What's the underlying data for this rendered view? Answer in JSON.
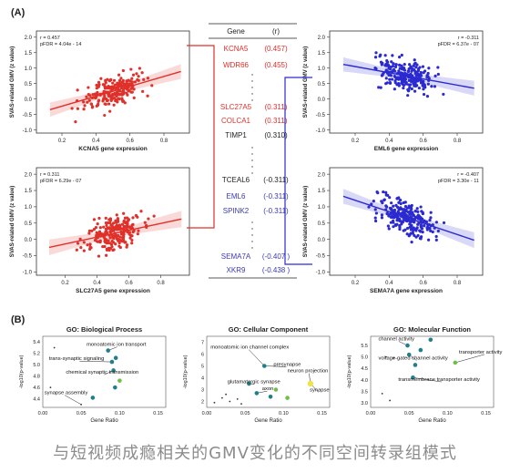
{
  "panels": {
    "a_label": "(A)",
    "b_label": "(B)"
  },
  "gene_table": {
    "header": {
      "gene": "Gene",
      "r": "(r)"
    },
    "rows": [
      {
        "gene": "KCNA5",
        "r": "(0.457)",
        "color": "#e0302a"
      },
      {
        "gene": "WDR66",
        "r": "(0.455)",
        "color": "#e0302a"
      },
      {
        "gene": "SLC27A5",
        "r": "(0.311)",
        "color": "#e0302a"
      },
      {
        "gene": "COLCA1",
        "r": "(0.311)",
        "color": "#e0302a"
      },
      {
        "gene": "TIMP1",
        "r": "(0.310)",
        "color": "#222222"
      },
      {
        "gene": "TCEAL6",
        "r": "(-0.311)",
        "color": "#222222"
      },
      {
        "gene": "EML6",
        "r": "(-0.311)",
        "color": "#3a3ab0"
      },
      {
        "gene": "SPINK2",
        "r": "(-0.311)",
        "color": "#3a3ab0"
      },
      {
        "gene": "SEMA7A",
        "r": "(-0.407 )",
        "color": "#3a3ab0"
      },
      {
        "gene": "XKR9",
        "r": "(-0.438 )",
        "color": "#3a3ab0"
      }
    ]
  },
  "colors": {
    "positive": "#e0302a",
    "negative": "#2a2ad0",
    "go_teal": "#1f7f8a",
    "go_green": "#6cc04a",
    "go_yellow": "#f2e24a"
  },
  "chart_data": [
    {
      "type": "scatter",
      "id": "kcna5",
      "color": "#e0302a",
      "xlabel": "KCNA5 gene expression",
      "ylabel": "SVAS-related GMV (z value)",
      "stats": [
        "r = 0.457",
        "pFDR = 4.04e - 14"
      ],
      "xticks": [
        "0.2",
        "0.4",
        "0.6",
        "0.8"
      ],
      "yticks": [
        "2.0",
        "1.5",
        "1.0",
        "0.5",
        "0.0",
        "-0.5",
        "-1.0"
      ],
      "xlim": [
        0.05,
        0.95
      ],
      "ylim": [
        -1.1,
        2.2
      ],
      "fit": {
        "slope": 1.6,
        "intercept": -0.55,
        "n": 230,
        "seed": 11
      }
    },
    {
      "type": "scatter",
      "id": "eml6",
      "color": "#2a2ad0",
      "xlabel": "EML6 gene expression",
      "ylabel": "SVAS-related GMV (z value)",
      "stats": [
        "r = -0.311",
        "pFDR = 6.37e - 07"
      ],
      "xticks": [
        "0.2",
        "0.4",
        "0.6",
        "0.8"
      ],
      "yticks": [
        "2.0",
        "1.5",
        "1.0",
        "0.5",
        "0.0",
        "-0.5",
        "-1.0"
      ],
      "xlim": [
        0.05,
        0.95
      ],
      "ylim": [
        -1.1,
        2.2
      ],
      "fit": {
        "slope": -1.0,
        "intercept": 1.25,
        "n": 230,
        "seed": 23
      }
    },
    {
      "type": "scatter",
      "id": "slc27a5",
      "color": "#e0302a",
      "xlabel": "SLC27A5 gene expression",
      "ylabel": "SVAS-related GMV (z value)",
      "stats": [
        "r = 0.311",
        "pFDR = 6.29e - 07"
      ],
      "xticks": [
        "0.2",
        "0.4",
        "0.6",
        "0.8"
      ],
      "yticks": [
        "2.0",
        "1.5",
        "1.0",
        "0.5",
        "0.0",
        "-0.5",
        "-1.0"
      ],
      "xlim": [
        0.02,
        0.98
      ],
      "ylim": [
        -1.1,
        2.2
      ],
      "fit": {
        "slope": 1.05,
        "intercept": -0.35,
        "n": 230,
        "seed": 37
      }
    },
    {
      "type": "scatter",
      "id": "sema7a",
      "color": "#2a2ad0",
      "xlabel": "SEMA7A gene expression",
      "ylabel": "SVAS-related GMV (z value)",
      "stats": [
        "r = -0.407",
        "pFDR = 3.30e - 11"
      ],
      "xticks": [
        "0.2",
        "0.4",
        "0.6",
        "0.8"
      ],
      "yticks": [
        "2.0",
        "1.5",
        "1.0",
        "0.5",
        "0.0",
        "-0.5",
        "-1.0"
      ],
      "xlim": [
        0.05,
        0.95
      ],
      "ylim": [
        -1.1,
        2.2
      ],
      "fit": {
        "slope": -1.75,
        "intercept": 1.55,
        "n": 230,
        "seed": 53
      }
    },
    {
      "type": "scatter",
      "id": "go-bp",
      "title": "GO: Biological Process",
      "xlabel": "Gene Ratio",
      "ylabel": "-log10(p-value)",
      "xticks": [
        "0.00",
        "0.05",
        "0.10",
        "0.15"
      ],
      "yticks": [
        "5.4",
        "5.2",
        "5.0",
        "4.8",
        "4.6",
        "4.4"
      ],
      "xlim": [
        0,
        0.16
      ],
      "ylim": [
        4.25,
        5.5
      ],
      "points": [
        {
          "x": 0.085,
          "y": 5.25,
          "c": "teal"
        },
        {
          "x": 0.095,
          "y": 5.12,
          "c": "teal"
        },
        {
          "x": 0.09,
          "y": 5.05,
          "c": "teal"
        },
        {
          "x": 0.092,
          "y": 4.9,
          "c": "teal"
        },
        {
          "x": 0.1,
          "y": 4.72,
          "c": "green"
        },
        {
          "x": 0.094,
          "y": 4.6,
          "c": "teal"
        },
        {
          "x": 0.065,
          "y": 4.42,
          "c": "teal"
        },
        {
          "x": 0.015,
          "y": 5.3,
          "c": "dot"
        },
        {
          "x": 0.01,
          "y": 4.6,
          "c": "dot"
        },
        {
          "x": 0.05,
          "y": 4.3,
          "c": "dot"
        }
      ],
      "labels": [
        {
          "text": "monoatomic ion transport",
          "x": 0.057,
          "y": 5.33,
          "px": 0.085,
          "py": 5.25
        },
        {
          "text": "trans-synaptic signaling",
          "x": 0.008,
          "y": 5.08,
          "px": 0.09,
          "py": 5.05
        },
        {
          "text": "chemical synaptic transmission",
          "x": 0.03,
          "y": 4.84,
          "px": 0.092,
          "py": 4.9
        },
        {
          "text": "synapse assembly",
          "x": 0.002,
          "y": 4.48,
          "px": 0.05,
          "py": 4.3
        }
      ]
    },
    {
      "type": "scatter",
      "id": "go-cc",
      "title": "GO: Cellular Component",
      "xlabel": "Gene Ratio",
      "ylabel": "-log10(p-value)",
      "xticks": [
        "0.00",
        "0.05",
        "0.10",
        "0.15"
      ],
      "yticks": [
        "7",
        "6",
        "5",
        "4",
        "3",
        "2"
      ],
      "xlim": [
        0,
        0.16
      ],
      "ylim": [
        1.5,
        7.5
      ],
      "points": [
        {
          "x": 0.075,
          "y": 5.0,
          "c": "teal"
        },
        {
          "x": 0.055,
          "y": 3.5,
          "c": "teal"
        },
        {
          "x": 0.065,
          "y": 2.7,
          "c": "teal"
        },
        {
          "x": 0.083,
          "y": 2.4,
          "c": "teal"
        },
        {
          "x": 0.09,
          "y": 3.0,
          "c": "green"
        },
        {
          "x": 0.105,
          "y": 2.3,
          "c": "green"
        },
        {
          "x": 0.135,
          "y": 3.5,
          "c": "yellow"
        },
        {
          "x": 0.02,
          "y": 2.3,
          "c": "dot"
        },
        {
          "x": 0.03,
          "y": 2.0,
          "c": "dot"
        },
        {
          "x": 0.04,
          "y": 2.2,
          "c": "dot"
        },
        {
          "x": 0.01,
          "y": 1.9,
          "c": "dot"
        },
        {
          "x": 0.045,
          "y": 1.8,
          "c": "dot"
        },
        {
          "x": 0.025,
          "y": 2.6,
          "c": "dot"
        }
      ],
      "labels": [
        {
          "text": "monoatomic ion channel complex",
          "x": 0.005,
          "y": 6.45,
          "px": 0.075,
          "py": 5.0
        },
        {
          "text": "presynapse",
          "x": 0.087,
          "y": 5.0,
          "px": 0.075,
          "py": 5.0
        },
        {
          "text": "neuron projection",
          "x": 0.105,
          "y": 4.45,
          "px": 0.135,
          "py": 3.5
        },
        {
          "text": "glutamatergic synapse",
          "x": 0.027,
          "y": 3.55,
          "px": 0.055,
          "py": 3.5
        },
        {
          "text": "axon",
          "x": 0.072,
          "y": 2.95,
          "px": 0.065,
          "py": 2.7
        },
        {
          "text": "synapse",
          "x": 0.134,
          "y": 2.85,
          "px": 0.135,
          "py": 3.5
        }
      ]
    },
    {
      "type": "scatter",
      "id": "go-mf",
      "title": "GO: Molecular Function",
      "xlabel": "Gene Ratio",
      "ylabel": "-log10(p-value)",
      "xticks": [
        "0.00",
        "0.05",
        "0.10",
        "0.15"
      ],
      "yticks": [
        "5.5",
        "5.0",
        "4.5",
        "4.0",
        "3.5",
        "3.0"
      ],
      "xlim": [
        0,
        0.16
      ],
      "ylim": [
        2.8,
        5.9
      ],
      "points": [
        {
          "x": 0.048,
          "y": 5.5,
          "c": "teal"
        },
        {
          "x": 0.05,
          "y": 5.1,
          "c": "teal"
        },
        {
          "x": 0.065,
          "y": 5.3,
          "c": "teal"
        },
        {
          "x": 0.078,
          "y": 5.75,
          "c": "teal"
        },
        {
          "x": 0.058,
          "y": 4.65,
          "c": "teal"
        },
        {
          "x": 0.11,
          "y": 4.75,
          "c": "green"
        },
        {
          "x": 0.055,
          "y": 4.1,
          "c": "teal"
        },
        {
          "x": 0.02,
          "y": 5.0,
          "c": "dot"
        },
        {
          "x": 0.03,
          "y": 4.95,
          "c": "dot"
        },
        {
          "x": 0.015,
          "y": 3.4,
          "c": "dot"
        },
        {
          "x": 0.025,
          "y": 3.1,
          "c": "dot"
        }
      ],
      "labels": [
        {
          "text": "channel activity",
          "x": 0.01,
          "y": 5.72,
          "px": 0.048,
          "py": 5.5
        },
        {
          "text": "transporter activity",
          "x": 0.115,
          "y": 5.15,
          "px": 0.11,
          "py": 4.75
        },
        {
          "text": "voltage-gated channel activity",
          "x": 0.01,
          "y": 4.88,
          "px": 0.05,
          "py": 5.1
        },
        {
          "text": "transmembrane transporter activity",
          "x": 0.036,
          "y": 3.95,
          "px": 0.055,
          "py": 4.1
        }
      ]
    }
  ],
  "caption": "与短视频成瘾相关的GMV变化的不同空间转录组模式"
}
